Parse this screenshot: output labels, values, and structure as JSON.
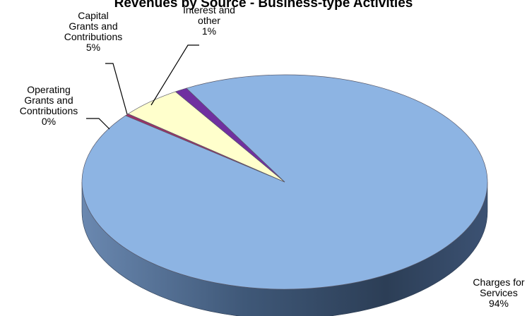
{
  "chart_data": {
    "type": "pie",
    "title": "Revenues by Source - Business-type Activities",
    "legend": "none",
    "slices": [
      {
        "name": "Charges for Services",
        "value": 94,
        "label_lines": [
          "Charges for",
          "Services",
          "94%"
        ],
        "color": "#8DB4E3"
      },
      {
        "name": "Operating Grants and Contributions",
        "value": 0,
        "label_lines": [
          "Operating",
          "Grants and",
          "Contributions",
          "0%"
        ],
        "color": "#993366"
      },
      {
        "name": "Capital Grants and Contributions",
        "value": 5,
        "label_lines": [
          "Capital",
          "Grants and",
          "Contributions",
          "5%"
        ],
        "color": "#FFFFCC"
      },
      {
        "name": "Interest and other",
        "value": 1,
        "label_lines": [
          "Interest and",
          "other",
          "1%"
        ],
        "color": "#7030A0"
      }
    ],
    "side_color": "#4F6D8F"
  }
}
